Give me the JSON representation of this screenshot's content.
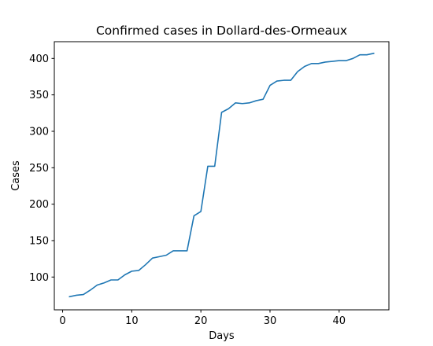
{
  "chart_data": {
    "type": "line",
    "title": "Confirmed cases in Dollard-des-Ormeaux",
    "xlabel": "Days",
    "ylabel": "Cases",
    "xlim": [
      -1.2,
      47.2
    ],
    "ylim": [
      55,
      423
    ],
    "xticks": [
      0,
      10,
      20,
      30,
      40
    ],
    "yticks": [
      100,
      150,
      200,
      250,
      300,
      350,
      400
    ],
    "grid": false,
    "legend": "none",
    "series": [
      {
        "color": "#1f77b4",
        "x": [
          1,
          2,
          3,
          4,
          5,
          6,
          7,
          8,
          9,
          10,
          11,
          12,
          13,
          14,
          15,
          16,
          17,
          18,
          19,
          20,
          21,
          22,
          23,
          24,
          25,
          26,
          27,
          28,
          29,
          30,
          31,
          32,
          33,
          34,
          35,
          36,
          37,
          38,
          39,
          40,
          41,
          42,
          43,
          44,
          45
        ],
        "y": [
          73,
          75,
          76,
          82,
          89,
          92,
          96,
          96,
          103,
          108,
          109,
          117,
          126,
          128,
          130,
          136,
          136,
          136,
          184,
          190,
          252,
          252,
          326,
          331,
          339,
          338,
          339,
          342,
          344,
          363,
          369,
          370,
          370,
          382,
          389,
          393,
          393,
          395,
          396,
          397,
          397,
          400,
          405,
          405,
          407
        ]
      }
    ]
  }
}
